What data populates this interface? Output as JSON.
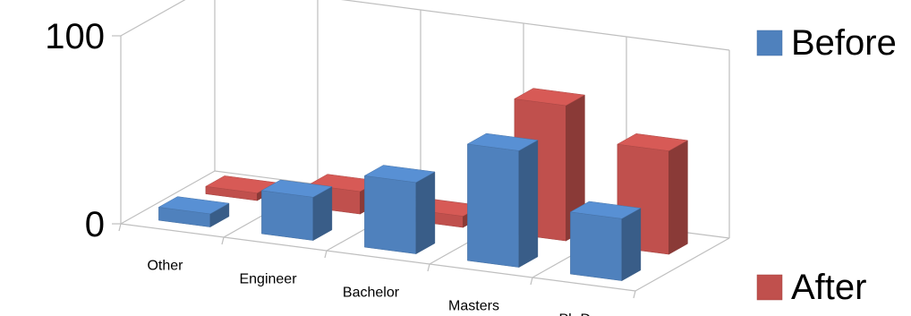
{
  "chart_data": {
    "type": "bar",
    "subtype": "3d-clustered-columns",
    "categories": [
      "Other",
      "Engineer",
      "Bachelor",
      "Masters",
      "Ph.D."
    ],
    "series": [
      {
        "name": "Before",
        "values": [
          7,
          23,
          38,
          62,
          33
        ],
        "color": "#4F81BD"
      },
      {
        "name": "After",
        "values": [
          4,
          12,
          6,
          72,
          55
        ],
        "color": "#C0504D"
      }
    ],
    "ylim": [
      0,
      100
    ],
    "yticks": [
      "0",
      "100"
    ],
    "grid": true,
    "legend_placement": "right"
  }
}
